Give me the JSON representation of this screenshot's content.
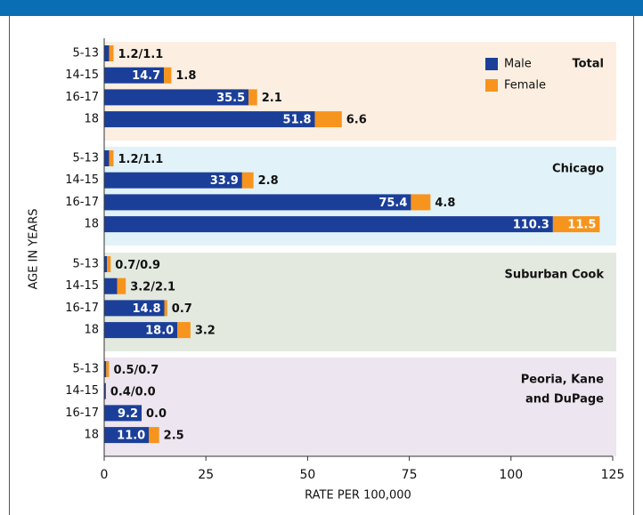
{
  "chart_data": {
    "type": "bar",
    "orientation": "horizontal",
    "stacked": true,
    "y_label": "AGE IN YEARS",
    "x_label": "RATE PER 100,000",
    "xlim": [
      0,
      125
    ],
    "xticks": [
      0,
      25,
      50,
      75,
      100,
      125
    ],
    "label_separator": "/",
    "legend_panel": 0,
    "series": [
      {
        "name": "Male",
        "color": "#1b3f99"
      },
      {
        "name": "Female",
        "color": "#f7941d"
      }
    ],
    "panels": [
      {
        "title": [
          "Total"
        ],
        "background": "#fcefe1",
        "categories": [
          "5-13",
          "14-15",
          "16-17",
          "18"
        ],
        "series": [
          {
            "values": [
              1.2,
              14.7,
              35.5,
              51.8
            ],
            "value_labels": [
              "1.2",
              "14.7",
              "35.5",
              "51.8"
            ]
          },
          {
            "values": [
              1.1,
              1.8,
              2.1,
              6.6
            ],
            "value_labels": [
              "1.1",
              "1.8",
              "2.1",
              "6.6"
            ]
          }
        ]
      },
      {
        "title": [
          "Chicago"
        ],
        "background": "#e1f2f9",
        "categories": [
          "5-13",
          "14-15",
          "16-17",
          "18"
        ],
        "series": [
          {
            "values": [
              1.2,
              33.9,
              75.4,
              110.3
            ],
            "value_labels": [
              "1.2",
              "33.9",
              "75.4",
              "110.3"
            ]
          },
          {
            "values": [
              1.1,
              2.8,
              4.8,
              11.5
            ],
            "value_labels": [
              "1.1",
              "2.8",
              "4.8",
              "11.5"
            ]
          }
        ]
      },
      {
        "title": [
          "Suburban Cook"
        ],
        "background": "#e3e9df",
        "categories": [
          "5-13",
          "14-15",
          "16-17",
          "18"
        ],
        "series": [
          {
            "values": [
              0.7,
              3.2,
              14.8,
              18.0
            ],
            "value_labels": [
              "0.7",
              "3.2",
              "14.8",
              "18.0"
            ]
          },
          {
            "values": [
              0.9,
              2.1,
              0.7,
              3.2
            ],
            "value_labels": [
              "0.9",
              "2.1",
              "0.7",
              "3.2"
            ]
          }
        ]
      },
      {
        "title": [
          "Peoria, Kane",
          "and DuPage"
        ],
        "background": "#ede5ef",
        "categories": [
          "5-13",
          "14-15",
          "16-17",
          "18"
        ],
        "series": [
          {
            "values": [
              0.5,
              0.4,
              9.2,
              11.0
            ],
            "value_labels": [
              "0.5",
              "0.4",
              "9.2",
              "11.0"
            ]
          },
          {
            "values": [
              0.7,
              0.0,
              0.0,
              2.5
            ],
            "value_labels": [
              "0.7",
              "0.0",
              "0.0",
              "2.5"
            ]
          }
        ]
      }
    ]
  }
}
